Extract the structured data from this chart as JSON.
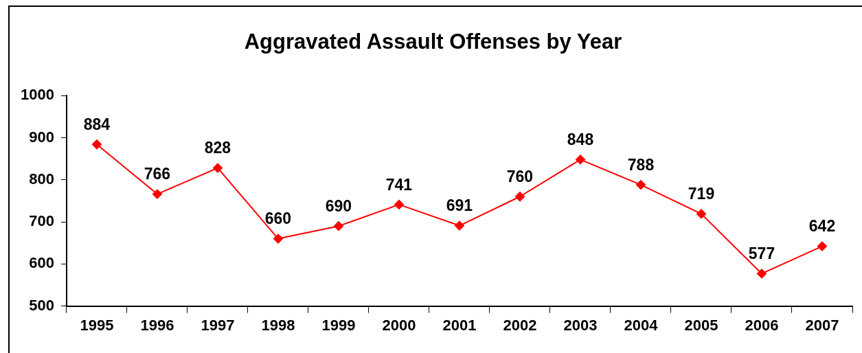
{
  "chart_data": {
    "type": "line",
    "title": "Aggravated Assault Offenses by Year",
    "categories": [
      "1995",
      "1996",
      "1997",
      "1998",
      "1999",
      "2000",
      "2001",
      "2002",
      "2003",
      "2004",
      "2005",
      "2006",
      "2007"
    ],
    "series": [
      {
        "color": "#ff0000",
        "values": [
          884,
          766,
          828,
          660,
          690,
          741,
          691,
          760,
          848,
          788,
          719,
          577,
          642
        ]
      }
    ],
    "ylim": [
      500,
      1000
    ],
    "yticks": [
      500,
      600,
      700,
      800,
      900,
      1000
    ],
    "grid": false,
    "legend": false,
    "marker": "diamond",
    "line_style": "solid",
    "data_labels": true
  }
}
